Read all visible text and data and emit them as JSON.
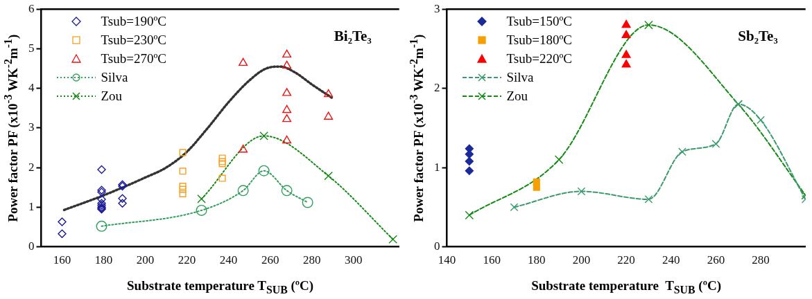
{
  "chart_data": [
    {
      "type": "scatter",
      "xlabel": "Substrate temperature T$_{SUB}$ (ºC)",
      "ylabel": "Power factor PF (x10$^{-3}$ WK$^{-2}$m$^{-1}$)",
      "annotations": [
        "Bi₂Te₃"
      ],
      "xlim": [
        150,
        322
      ],
      "xticks": [
        160,
        180,
        200,
        220,
        240,
        260,
        280,
        300
      ],
      "ylim": [
        0,
        6
      ],
      "yticks": [
        0,
        1,
        2,
        3,
        4,
        5,
        6
      ],
      "grid": false,
      "legend": "top left",
      "series": [
        {
          "name": "Tsub=190ºC",
          "marker": "diamond",
          "color": "#1a1a9a",
          "x": [
            160,
            160,
            179,
            179,
            179,
            179,
            179,
            179,
            179,
            179,
            179,
            189,
            189,
            189,
            189
          ],
          "values": [
            0.33,
            0.63,
            1.95,
            1.43,
            1.38,
            1.2,
            1.1,
            1.05,
            1.0,
            0.97,
            0.95,
            1.57,
            1.53,
            1.22,
            1.1
          ]
        },
        {
          "name": "Tsub=230ºC",
          "marker": "square",
          "color": "#f5a020",
          "x": [
            218,
            218,
            218,
            218,
            218,
            237,
            237,
            237,
            237
          ],
          "values": [
            2.38,
            1.91,
            1.53,
            1.45,
            1.34,
            2.24,
            2.15,
            2.1,
            1.73
          ]
        },
        {
          "name": "Tsub=270ºC",
          "marker": "triangle",
          "color": "#ee1111",
          "x": [
            247,
            247,
            268,
            268,
            268,
            268,
            268,
            268,
            288,
            288
          ],
          "values": [
            4.64,
            2.45,
            4.85,
            4.57,
            3.88,
            3.45,
            3.22,
            2.68,
            3.85,
            3.28
          ]
        },
        {
          "name": "Silva",
          "type": "line",
          "marker": "circle",
          "line_style": "dotted",
          "color": "#2e9e5b",
          "x": [
            179,
            227,
            247,
            257,
            268,
            278
          ],
          "values": [
            0.52,
            0.92,
            1.42,
            1.92,
            1.42,
            1.12
          ]
        },
        {
          "name": "Zou",
          "type": "line",
          "marker": "cross",
          "line_style": "dotted",
          "color": "#138a13",
          "x": [
            227,
            257,
            288,
            319
          ],
          "values": [
            1.21,
            2.8,
            1.79,
            0.19
          ]
        },
        {
          "type": "line",
          "marker": "none",
          "line_style": "dotted",
          "color": "#333333",
          "x": [
            161,
            180,
            200,
            210,
            220,
            230,
            240,
            250,
            258,
            265,
            272,
            280,
            290
          ],
          "values": [
            0.93,
            1.3,
            1.75,
            2.0,
            2.4,
            3.0,
            3.65,
            4.2,
            4.5,
            4.55,
            4.4,
            4.1,
            3.75
          ]
        }
      ]
    },
    {
      "type": "scatter",
      "xlabel": "Substrate temperature  T$_{SUB}$ (ºC)",
      "ylabel": "Power factor PF (x10$^{-3}$ WK$^{-2}$m$^{-1}$)",
      "annotations": [
        "Sb₂Te₃"
      ],
      "xlim": [
        140,
        300
      ],
      "xticks": [
        140,
        160,
        180,
        200,
        220,
        240,
        260,
        280
      ],
      "ylim": [
        0,
        3
      ],
      "yticks": [
        0,
        1,
        2,
        3
      ],
      "grid": false,
      "legend": "top left",
      "series": [
        {
          "name": "Tsub=150ºC",
          "marker": "diamond",
          "color": "#1a2a9a",
          "x": [
            150,
            150,
            150,
            150
          ],
          "values": [
            1.24,
            1.17,
            1.08,
            0.96
          ]
        },
        {
          "name": "Tsub=180ºC",
          "marker": "square",
          "color": "#f5a000",
          "x": [
            180,
            180
          ],
          "values": [
            0.82,
            0.75
          ]
        },
        {
          "name": "Tsub=220ºC",
          "marker": "triangle",
          "color": "#ff0000",
          "x": [
            220,
            220,
            220,
            220
          ],
          "values": [
            2.8,
            2.67,
            2.42,
            2.3
          ]
        },
        {
          "name": "Silva",
          "type": "line",
          "marker": "cross",
          "line_style": "dashed",
          "color": "#3a9a6e",
          "x": [
            170,
            200,
            230,
            245,
            260,
            270,
            280,
            300
          ],
          "values": [
            0.5,
            0.7,
            0.6,
            1.2,
            1.3,
            1.8,
            1.6,
            0.6
          ]
        },
        {
          "name": "Zou",
          "type": "line",
          "marker": "cross",
          "line_style": "dashed",
          "color": "#138a13",
          "x": [
            150,
            190,
            230,
            270,
            300
          ],
          "values": [
            0.4,
            1.1,
            2.8,
            1.8,
            0.65
          ]
        }
      ]
    }
  ]
}
